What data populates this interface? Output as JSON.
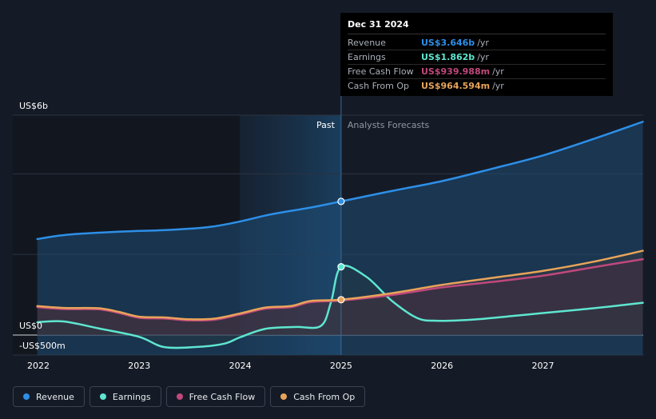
{
  "chart_data": {
    "type": "area",
    "y_unit_labels": {
      "top": "US$6b",
      "zero": "US$0",
      "bottom": "-US$500m"
    },
    "ylim": [
      -500,
      6000
    ],
    "x_ticks": [
      "2022",
      "2023",
      "2024",
      "2025",
      "2026",
      "2027"
    ],
    "divider_labels": {
      "past": "Past",
      "forecast": "Analysts Forecasts"
    },
    "divider_date": 2025.0,
    "series": [
      {
        "name": "Revenue",
        "color": "#2d8fe8",
        "points": [
          [
            2021.99,
            2620
          ],
          [
            2022.3,
            2740
          ],
          [
            2022.8,
            2820
          ],
          [
            2023.3,
            2870
          ],
          [
            2023.7,
            2950
          ],
          [
            2024.0,
            3100
          ],
          [
            2024.3,
            3290
          ],
          [
            2024.7,
            3480
          ],
          [
            2025.0,
            3646
          ],
          [
            2025.5,
            3930
          ],
          [
            2026.0,
            4200
          ],
          [
            2026.5,
            4540
          ],
          [
            2027.0,
            4900
          ],
          [
            2027.5,
            5350
          ],
          [
            2027.99,
            5820
          ]
        ]
      },
      {
        "name": "Earnings",
        "color": "#5ee6d0",
        "points": [
          [
            2021.99,
            350
          ],
          [
            2022.25,
            370
          ],
          [
            2022.6,
            180
          ],
          [
            2023.0,
            -50
          ],
          [
            2023.25,
            -330
          ],
          [
            2023.6,
            -320
          ],
          [
            2023.85,
            -230
          ],
          [
            2024.0,
            -60
          ],
          [
            2024.25,
            170
          ],
          [
            2024.55,
            220
          ],
          [
            2024.8,
            250
          ],
          [
            2024.9,
            900
          ],
          [
            2025.0,
            1862
          ],
          [
            2025.25,
            1590
          ],
          [
            2025.5,
            940
          ],
          [
            2025.75,
            470
          ],
          [
            2025.95,
            390
          ],
          [
            2026.3,
            420
          ],
          [
            2026.7,
            520
          ],
          [
            2027.0,
            600
          ],
          [
            2027.5,
            730
          ],
          [
            2027.99,
            880
          ]
        ]
      },
      {
        "name": "Free Cash Flow",
        "color": "#c0487c",
        "points": [
          [
            2021.99,
            760
          ],
          [
            2022.25,
            710
          ],
          [
            2022.6,
            700
          ],
          [
            2022.8,
            600
          ],
          [
            2023.0,
            470
          ],
          [
            2023.25,
            450
          ],
          [
            2023.5,
            400
          ],
          [
            2023.75,
            420
          ],
          [
            2024.0,
            560
          ],
          [
            2024.25,
            720
          ],
          [
            2024.5,
            760
          ],
          [
            2024.7,
            900
          ],
          [
            2025.0,
            939.988
          ],
          [
            2025.5,
            1090
          ],
          [
            2026.0,
            1300
          ],
          [
            2026.5,
            1450
          ],
          [
            2027.0,
            1620
          ],
          [
            2027.5,
            1850
          ],
          [
            2027.99,
            2070
          ]
        ]
      },
      {
        "name": "Cash From Op",
        "color": "#e8a45a",
        "points": [
          [
            2021.99,
            790
          ],
          [
            2022.25,
            740
          ],
          [
            2022.6,
            730
          ],
          [
            2022.8,
            630
          ],
          [
            2023.0,
            500
          ],
          [
            2023.25,
            480
          ],
          [
            2023.5,
            430
          ],
          [
            2023.75,
            450
          ],
          [
            2024.0,
            590
          ],
          [
            2024.25,
            750
          ],
          [
            2024.5,
            790
          ],
          [
            2024.7,
            930
          ],
          [
            2025.0,
            964.594
          ],
          [
            2025.5,
            1140
          ],
          [
            2026.0,
            1370
          ],
          [
            2026.5,
            1560
          ],
          [
            2027.0,
            1750
          ],
          [
            2027.5,
            2000
          ],
          [
            2027.99,
            2300
          ]
        ]
      }
    ]
  },
  "tooltip": {
    "date": "Dec 31 2024",
    "rows": [
      {
        "label": "Revenue",
        "value": "US$3.646b",
        "unit": "/yr",
        "color": "#2d8fe8"
      },
      {
        "label": "Earnings",
        "value": "US$1.862b",
        "unit": "/yr",
        "color": "#5ee6d0"
      },
      {
        "label": "Free Cash Flow",
        "value": "US$939.988m",
        "unit": "/yr",
        "color": "#c0487c"
      },
      {
        "label": "Cash From Op",
        "value": "US$964.594m",
        "unit": "/yr",
        "color": "#e8a45a"
      }
    ]
  },
  "legend": [
    {
      "label": "Revenue",
      "color": "#2d8fe8"
    },
    {
      "label": "Earnings",
      "color": "#5ee6d0"
    },
    {
      "label": "Free Cash Flow",
      "color": "#c0487c"
    },
    {
      "label": "Cash From Op",
      "color": "#e8a45a"
    }
  ]
}
